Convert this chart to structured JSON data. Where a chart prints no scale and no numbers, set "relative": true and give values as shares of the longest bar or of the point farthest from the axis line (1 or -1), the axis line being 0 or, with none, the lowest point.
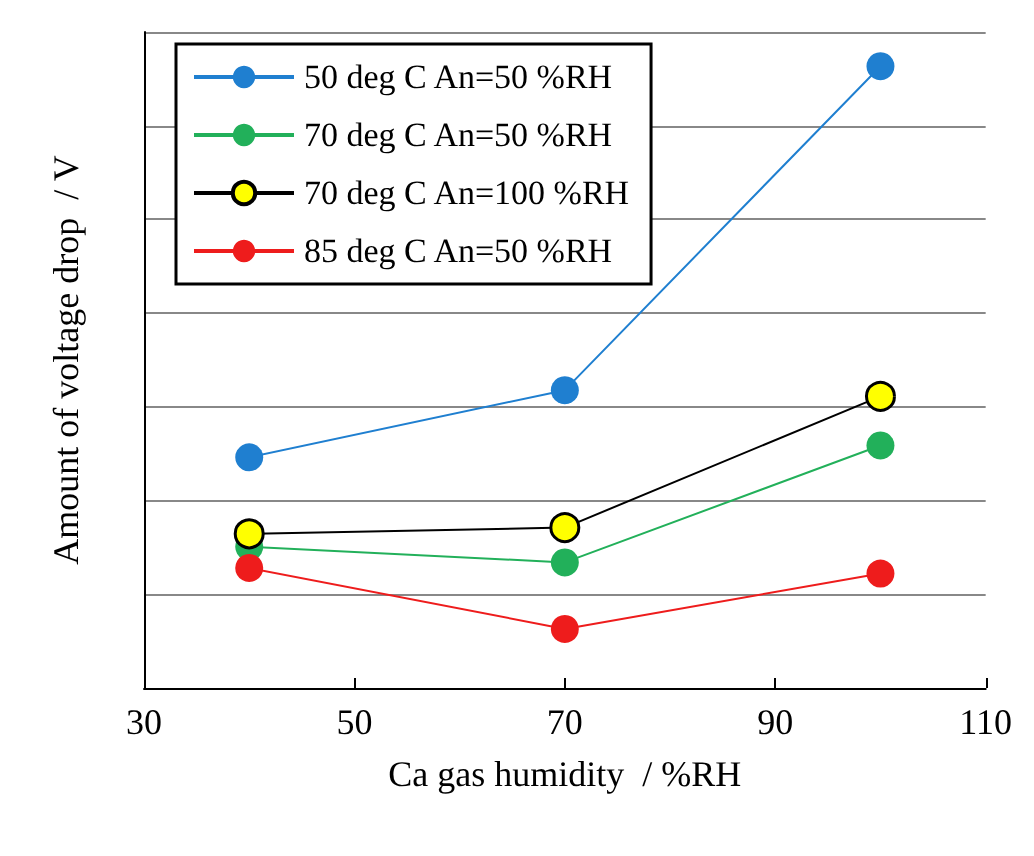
{
  "chart_data": {
    "type": "line",
    "xlabel": "Ca gas humidity  / %RH",
    "ylabel": "Amount of voltage drop  / V",
    "x": [
      40,
      70,
      100
    ],
    "xlim": [
      30,
      110
    ],
    "xticks": [
      30,
      50,
      70,
      90,
      110
    ],
    "relative": true,
    "grid": "y",
    "legend": "top left",
    "marker": "circle",
    "line_style": "solid",
    "series": [
      {
        "name": "50 deg C An=50 %RH",
        "color": "#1f7fd0",
        "values": [
          0.371,
          0.479,
          1
        ]
      },
      {
        "name": "70 deg C An=50 %RH",
        "color": "#22b05a",
        "values": [
          0.227,
          0.202,
          0.39
        ]
      },
      {
        "name": "70 deg C An=100 %RH",
        "color": "#ffff00",
        "values": [
          0.248,
          0.258,
          0.469
        ]
      },
      {
        "name": "85 deg C An=50 %RH",
        "color": "#ee1c1c",
        "values": [
          0.193,
          0.095,
          0.184
        ]
      }
    ]
  }
}
